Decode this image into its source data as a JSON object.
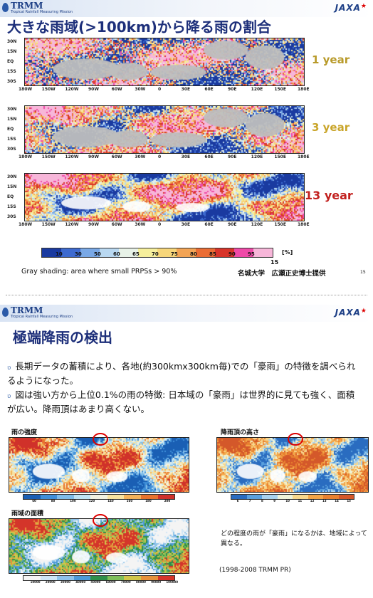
{
  "slide1": {
    "brand": "TRMM",
    "brand_sub": "Tropical Rainfall Measuring Mission",
    "agency": "JAXA",
    "title": "大きな雨域(>100km)から降る雨の割合",
    "lat_labels": [
      "30N",
      "15N",
      "EQ",
      "15S",
      "30S"
    ],
    "lon_labels": [
      "180W",
      "150W",
      "120W",
      "90W",
      "60W",
      "30W",
      "0",
      "30E",
      "60E",
      "90E",
      "120E",
      "150E",
      "180E"
    ],
    "maps": [
      {
        "label": "1 year",
        "color": "#b89a2a"
      },
      {
        "label": "3 year",
        "color": "#c9a52a"
      },
      {
        "label": "13 year",
        "color": "#c2201e"
      }
    ],
    "colorbar": {
      "ticks": [
        "10",
        "30",
        "50",
        "60",
        "65",
        "70",
        "75",
        "80",
        "85",
        "90",
        "95"
      ],
      "unit": "[%]",
      "colors": [
        "#1a3aa0",
        "#3d6ad0",
        "#79a8e6",
        "#b9d8f1",
        "#e8f2e8",
        "#f6ef9c",
        "#f7d67a",
        "#f3a455",
        "#ea6c34",
        "#d8342a",
        "#ef4aa8",
        "#f7b6d9"
      ]
    },
    "footnote": "Gray shading: area where small PRPSs > 90%",
    "credit": "名城大学　広瀬正史博士提供",
    "page": "15",
    "page_center": "15"
  },
  "slide2": {
    "brand": "TRMM",
    "brand_sub": "Tropical Rainfall Measuring Mission",
    "agency": "JAXA",
    "title": "極端降雨の検出",
    "bullets": [
      "長期データの蓄積により、各地(約300kmx300km毎)での「豪雨」の特徴を調べられるようになった。",
      "図は強い方から上位0.1%の雨の特徴: 日本域の「豪雨」は世界的に見ても強く、面積が広い。降雨頂はあまり高くない。"
    ],
    "panels": [
      {
        "title": "雨の強度",
        "ticks": [
          "60",
          "80",
          "100",
          "120",
          "140",
          "160",
          "180",
          "200"
        ]
      },
      {
        "title": "降雨頂の高さ",
        "ticks": [
          "6",
          "7",
          "8",
          "9",
          "10",
          "11",
          "12",
          "13",
          "14",
          "15"
        ]
      },
      {
        "title": "雨域の面積",
        "ticks": [
          "10000",
          "20000",
          "30000",
          "40000",
          "50000",
          "60000",
          "70000",
          "80000",
          "90000",
          "100000"
        ]
      }
    ],
    "caption": "どの程度の雨が「豪雨」になるかは、地域によって異なる。",
    "source": "(1998-2008 TRMM PR)"
  }
}
